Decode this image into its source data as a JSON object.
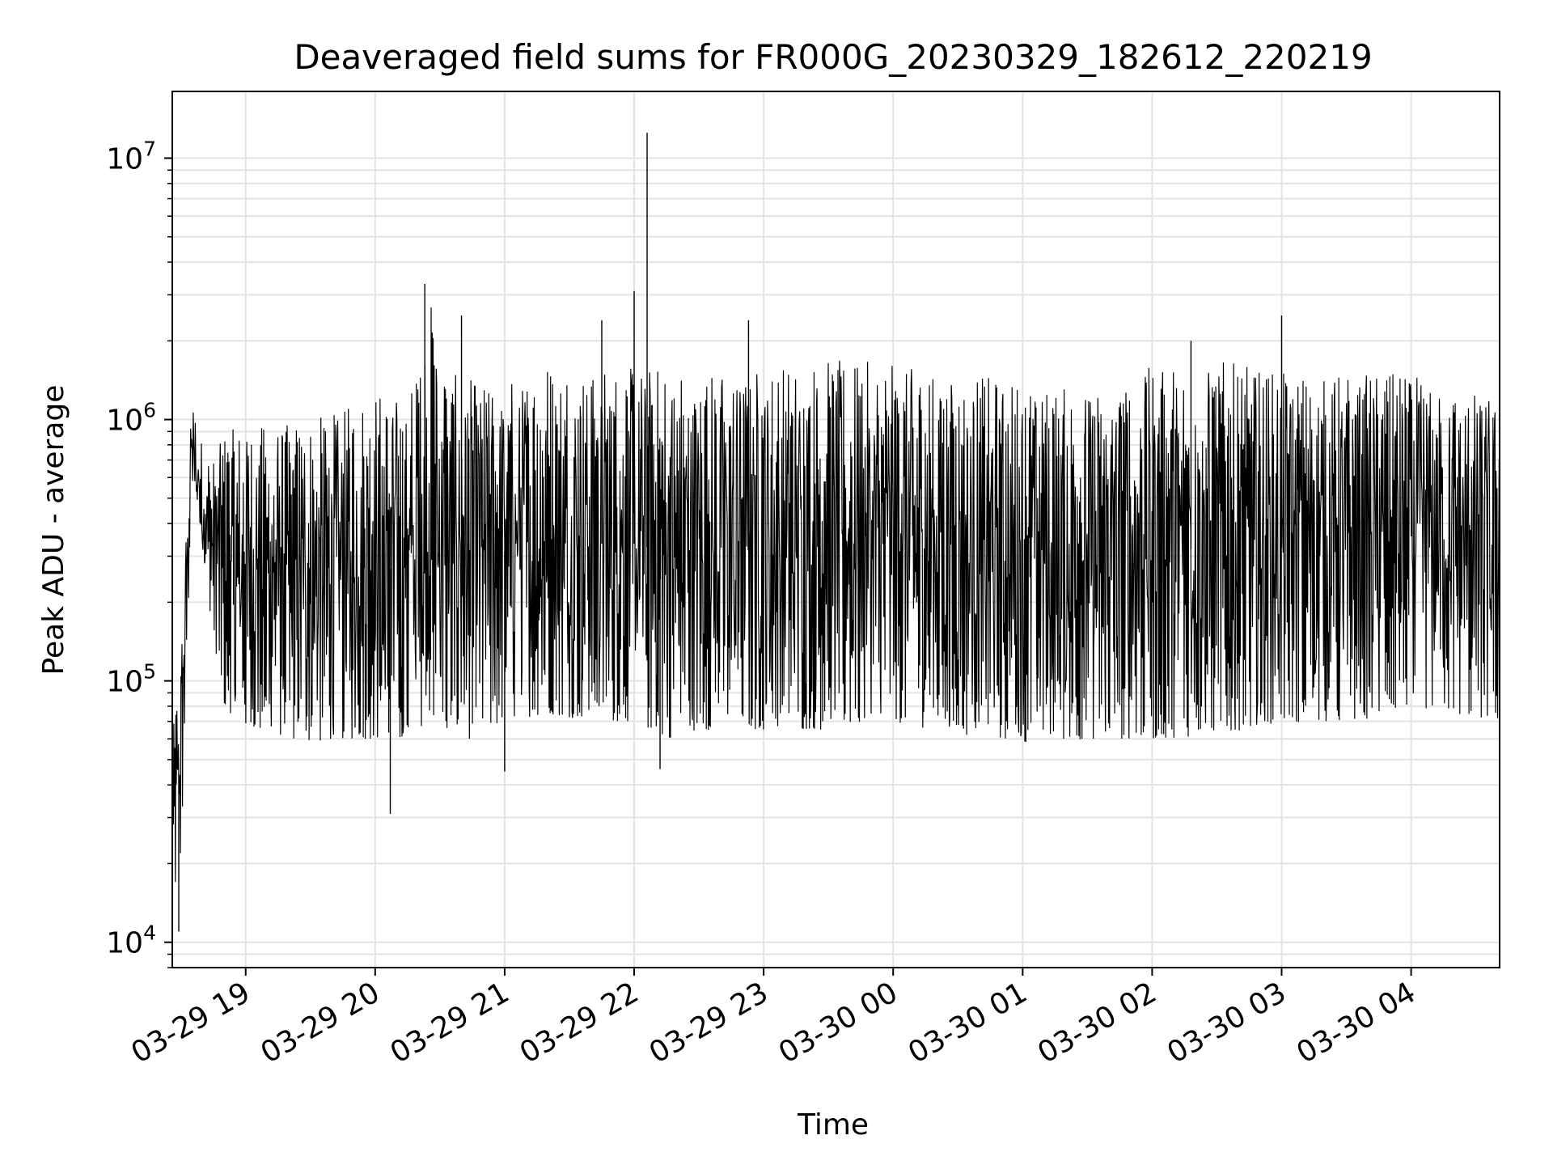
{
  "chart_data": {
    "type": "line",
    "title": "Deaveraged field sums for FR000G_20230329_182612_220219",
    "xlabel": "Time",
    "ylabel": "Peak ADU - average",
    "yscale": "log",
    "ylim": [
      8000,
      18000000
    ],
    "xlim": [
      "2023-03-29 18:26",
      "2023-03-30 04:41"
    ],
    "grid": true,
    "line_color": "#000000",
    "grid_color": "#e3e3e3",
    "x_ticks": [
      {
        "value": "2023-03-29 19:00",
        "label": "03-29 19"
      },
      {
        "value": "2023-03-29 20:00",
        "label": "03-29 20"
      },
      {
        "value": "2023-03-29 21:00",
        "label": "03-29 21"
      },
      {
        "value": "2023-03-29 22:00",
        "label": "03-29 22"
      },
      {
        "value": "2023-03-29 23:00",
        "label": "03-29 23"
      },
      {
        "value": "2023-03-30 00:00",
        "label": "03-30 00"
      },
      {
        "value": "2023-03-30 01:00",
        "label": "03-30 01"
      },
      {
        "value": "2023-03-30 02:00",
        "label": "03-30 02"
      },
      {
        "value": "2023-03-30 03:00",
        "label": "03-30 03"
      },
      {
        "value": "2023-03-30 04:00",
        "label": "03-30 04"
      }
    ],
    "y_ticks": [
      {
        "value": 10000,
        "base": "10",
        "exp": "4"
      },
      {
        "value": 100000,
        "base": "10",
        "exp": "5"
      },
      {
        "value": 1000000,
        "base": "10",
        "exp": "6"
      },
      {
        "value": 10000000,
        "base": "10",
        "exp": "7"
      }
    ],
    "series": [
      {
        "envelope": [
          {
            "x": "2023-03-29 18:26",
            "low": 14000,
            "high": 60000
          },
          {
            "x": "2023-03-29 18:30",
            "low": 20000,
            "high": 130000
          },
          {
            "x": "2023-03-29 18:35",
            "low": 500000,
            "high": 1200000
          },
          {
            "x": "2023-03-29 18:40",
            "low": 300000,
            "high": 800000
          },
          {
            "x": "2023-03-29 18:45",
            "low": 150000,
            "high": 700000
          },
          {
            "x": "2023-03-29 18:50",
            "low": 80000,
            "high": 900000
          },
          {
            "x": "2023-03-29 19:00",
            "low": 65000,
            "high": 950000
          },
          {
            "x": "2023-03-29 19:15",
            "low": 62000,
            "high": 950000
          },
          {
            "x": "2023-03-29 19:30",
            "low": 58000,
            "high": 1000000
          },
          {
            "x": "2023-03-29 19:45",
            "low": 60000,
            "high": 1100000
          },
          {
            "x": "2023-03-29 20:00",
            "low": 60000,
            "high": 1300000
          },
          {
            "x": "2023-03-29 20:15",
            "low": 55000,
            "high": 1200000
          },
          {
            "x": "2023-03-29 20:25",
            "low": 75000,
            "high": 3000000
          },
          {
            "x": "2023-03-29 20:35",
            "low": 60000,
            "high": 1500000
          },
          {
            "x": "2023-03-29 20:50",
            "low": 60000,
            "high": 1400000
          },
          {
            "x": "2023-03-29 21:00",
            "low": 70000,
            "high": 1400000
          },
          {
            "x": "2023-03-29 21:20",
            "low": 75000,
            "high": 1700000
          },
          {
            "x": "2023-03-29 21:40",
            "low": 70000,
            "high": 1600000
          },
          {
            "x": "2023-03-29 22:00",
            "low": 70000,
            "high": 1600000
          },
          {
            "x": "2023-03-29 22:15",
            "low": 60000,
            "high": 1600000
          },
          {
            "x": "2023-03-29 22:30",
            "low": 65000,
            "high": 1500000
          },
          {
            "x": "2023-03-29 22:45",
            "low": 65000,
            "high": 1600000
          },
          {
            "x": "2023-03-29 23:00",
            "low": 65000,
            "high": 1600000
          },
          {
            "x": "2023-03-29 23:30",
            "low": 65000,
            "high": 1700000
          },
          {
            "x": "2023-03-30 00:00",
            "low": 70000,
            "high": 1650000
          },
          {
            "x": "2023-03-30 00:30",
            "low": 62000,
            "high": 1500000
          },
          {
            "x": "2023-03-30 01:00",
            "low": 58000,
            "high": 1400000
          },
          {
            "x": "2023-03-30 01:30",
            "low": 60000,
            "high": 1300000
          },
          {
            "x": "2023-03-30 02:00",
            "low": 60000,
            "high": 1600000
          },
          {
            "x": "2023-03-30 02:30",
            "low": 62000,
            "high": 1700000
          },
          {
            "x": "2023-03-30 03:00",
            "low": 70000,
            "high": 1500000
          },
          {
            "x": "2023-03-30 03:30",
            "low": 68000,
            "high": 1500000
          },
          {
            "x": "2023-03-30 04:00",
            "low": 80000,
            "high": 1500000
          },
          {
            "x": "2023-03-30 04:41",
            "low": 70000,
            "high": 1200000
          }
        ],
        "spikes": [
          {
            "x": "2023-03-29 20:23",
            "value": 3300000
          },
          {
            "x": "2023-03-29 20:40",
            "value": 2500000
          },
          {
            "x": "2023-03-29 21:45",
            "value": 2400000
          },
          {
            "x": "2023-03-29 22:00",
            "value": 3100000
          },
          {
            "x": "2023-03-29 22:06",
            "value": 12500000
          },
          {
            "x": "2023-03-29 22:53",
            "value": 2400000
          },
          {
            "x": "2023-03-30 03:00",
            "value": 2500000
          },
          {
            "x": "2023-03-30 02:18",
            "value": 2000000
          },
          {
            "x": "2023-03-29 20:07",
            "value": 31000
          },
          {
            "x": "2023-03-29 21:00",
            "value": 45000
          },
          {
            "x": "2023-03-29 22:12",
            "value": 46000
          },
          {
            "x": "2023-03-29 18:29",
            "value": 11000
          }
        ]
      }
    ]
  }
}
